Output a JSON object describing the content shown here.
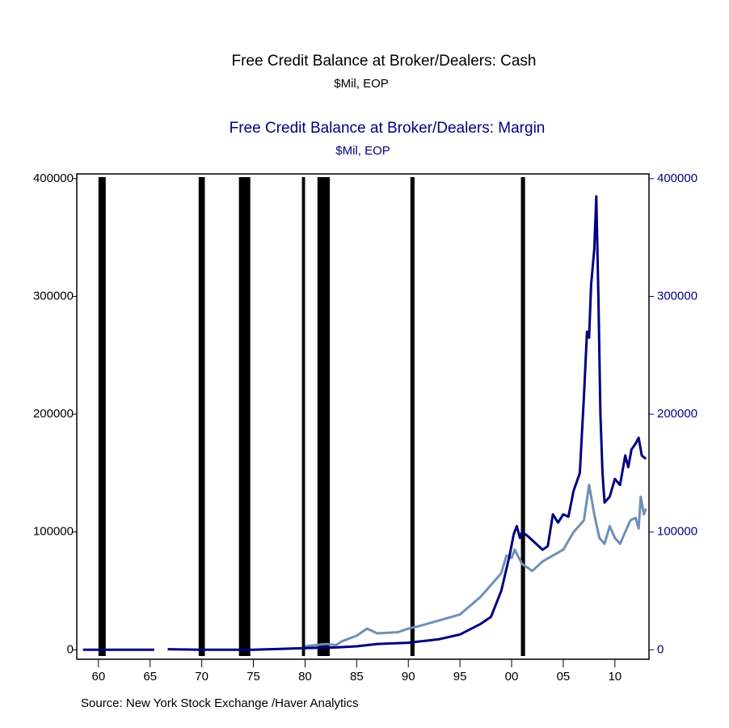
{
  "chart_data": {
    "type": "line",
    "series": [
      {
        "name": "Free Credit Balance at Broker/Dealers: Cash",
        "units": "$Mil, EOP",
        "color": "#6f8fb8",
        "axis": "y",
        "x": [
          1980,
          1982,
          1983,
          1983.5,
          1985,
          1986,
          1987,
          1989,
          1990,
          1991,
          1993,
          1995,
          1997,
          1998,
          1999,
          1999.5,
          2000,
          2000.3,
          2001,
          2002,
          2003,
          2004,
          2005,
          2006,
          2007,
          2007.5,
          2008,
          2008.5,
          2009,
          2009.5,
          2010,
          2010.5,
          2011,
          2011.5,
          2012,
          2012.3,
          2012.5,
          2012.8,
          2013
        ],
        "values": [
          3000,
          5000,
          4000,
          7000,
          12000,
          18000,
          14000,
          15000,
          18000,
          20000,
          25000,
          30000,
          45000,
          55000,
          65000,
          80000,
          78000,
          85000,
          73000,
          67000,
          75000,
          80000,
          85000,
          100000,
          110000,
          140000,
          115000,
          95000,
          90000,
          105000,
          95000,
          90000,
          100000,
          110000,
          112000,
          103000,
          130000,
          115000,
          120000
        ]
      },
      {
        "name": "Free Credit Balance at Broker/Dealers: Margin",
        "units": "$Mil, EOP",
        "color": "#000080",
        "axis": "y2",
        "x": [
          1958.5,
          1965.4,
          1966,
          1966.7,
          1970,
          1975,
          1980,
          1983,
          1985,
          1987,
          1990,
          1993,
          1995,
          1997,
          1998,
          1999,
          1999.8,
          2000.2,
          2000.5,
          2000.8,
          2001,
          2001.5,
          2002,
          2003,
          2003.5,
          2004,
          2004.5,
          2005,
          2005.5,
          2006,
          2006.6,
          2007,
          2007.3,
          2007.5,
          2007.7,
          2008,
          2008.2,
          2008.4,
          2008.6,
          2008.8,
          2009,
          2009.5,
          2010,
          2010.5,
          2011,
          2011.3,
          2011.6,
          2012,
          2012.3,
          2012.6,
          2013
        ],
        "values": [
          0,
          0,
          null,
          500,
          0,
          0,
          1500,
          2000,
          3000,
          5000,
          6000,
          9000,
          13000,
          22000,
          28000,
          50000,
          80000,
          98000,
          105000,
          95000,
          100000,
          97000,
          93000,
          85000,
          88000,
          115000,
          108000,
          115000,
          113000,
          135000,
          150000,
          215000,
          270000,
          265000,
          310000,
          340000,
          385000,
          300000,
          200000,
          150000,
          125000,
          130000,
          145000,
          140000,
          165000,
          155000,
          170000,
          175000,
          180000,
          165000,
          162000
        ]
      }
    ],
    "recessions": [
      [
        1960.0,
        1960.7
      ],
      [
        1969.7,
        1970.3
      ],
      [
        1973.6,
        1974.7
      ],
      [
        1979.7,
        1980.0
      ],
      [
        1981.2,
        1982.4
      ],
      [
        1990.2,
        1990.6
      ],
      [
        2000.9,
        2001.3
      ]
    ],
    "recession_color": "#000000",
    "xlim": [
      1957.9,
      2013.3
    ],
    "xticks": [
      {
        "value": 1960,
        "label": "60"
      },
      {
        "value": 1965,
        "label": "65"
      },
      {
        "value": 1970,
        "label": "70"
      },
      {
        "value": 1975,
        "label": "75"
      },
      {
        "value": 1980,
        "label": "80"
      },
      {
        "value": 1985,
        "label": "85"
      },
      {
        "value": 1990,
        "label": "90"
      },
      {
        "value": 1995,
        "label": "95"
      },
      {
        "value": 2000,
        "label": "00"
      },
      {
        "value": 2005,
        "label": "05"
      },
      {
        "value": 2010,
        "label": "10"
      }
    ],
    "ylim": [
      -8000,
      404000
    ],
    "yticks": [
      0,
      100000,
      200000,
      300000,
      400000
    ],
    "y2lim": [
      -8000,
      404000
    ],
    "y2ticks": [
      0,
      100000,
      200000,
      300000,
      400000
    ],
    "source": "Source:  New York Stock Exchange /Haver Analytics"
  }
}
